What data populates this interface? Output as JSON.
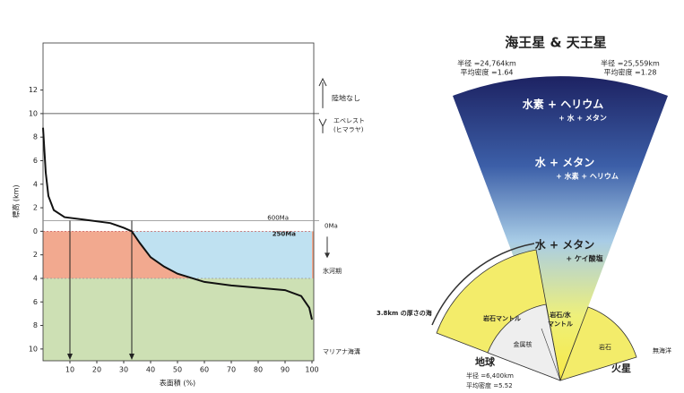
{
  "chart_data": {
    "type": "line",
    "y_label": "標高 (km)",
    "x_label": "表面積 (%)",
    "x": [
      0,
      1,
      2,
      4,
      8,
      15,
      25,
      30,
      33,
      36,
      40,
      45,
      50,
      60,
      70,
      80,
      90,
      96,
      99,
      100
    ],
    "values": [
      8.8,
      5,
      3,
      1.8,
      1.2,
      1,
      0.7,
      0.3,
      0,
      -1,
      -2.2,
      -3,
      -3.6,
      -4.3,
      -4.6,
      -4.8,
      -5,
      -5.5,
      -6.5,
      -7.5
    ],
    "color": "#111111",
    "xlim": [
      0,
      100
    ],
    "xticks": [
      10,
      20,
      30,
      40,
      50,
      60,
      70,
      80,
      90,
      100
    ],
    "ylim": [
      -11,
      16
    ],
    "yticks": [
      12,
      10,
      8,
      6,
      4,
      2,
      0,
      {
        "value": -2,
        "label": "2"
      },
      {
        "value": -4,
        "label": "4"
      },
      {
        "value": -6,
        "label": "6"
      },
      {
        "value": -8,
        "label": "8"
      },
      {
        "value": -10,
        "label": "10"
      }
    ],
    "sea_level": {
      "upper": 0,
      "lower": -4,
      "colors": {
        "pink": "#f2a98f",
        "blue": "#bfe1f1",
        "green": "#cde0b4"
      }
    },
    "reference_lines": [
      {
        "value": 10,
        "label": "エベレスト",
        "label2": "(ヒマラヤ)"
      },
      {
        "value": 0.9,
        "label": "600Ma"
      }
    ],
    "drop_lines_x": [
      10,
      33
    ],
    "annotations": {
      "no_land": "陸地なし",
      "now": "0Ma",
      "pangaea": "250Ma",
      "ice_age": "氷河期",
      "trench": "マリアナ海溝"
    }
  },
  "diagram": {
    "title": "海王星 & 天王星",
    "neptune": {
      "radius": "半径 =24,764km",
      "density": "平均密度 =1.64"
    },
    "uranus": {
      "radius": "半径 =25,559km",
      "density": "平均密度 =1.28"
    },
    "layers": [
      {
        "main": "水素 + ヘリウム",
        "sub": "+ 水 + メタン"
      },
      {
        "main": "水 + メタン",
        "sub": "+ 水素 + ヘリウム"
      },
      {
        "main": "水 + メタン",
        "sub": "+ ケイ酸塩"
      }
    ],
    "ice_mantle": [
      "岩石/氷",
      "マントル"
    ],
    "earth": {
      "ocean": "3.8km の厚さの海",
      "mantle": "岩石マントル",
      "core": "金属核",
      "name": "地球",
      "radius": "半径 =6,400km",
      "density": "平均密度 =5.52"
    },
    "mars": {
      "rock": "岩石",
      "ocean": "無海洋",
      "name": "火星"
    }
  }
}
